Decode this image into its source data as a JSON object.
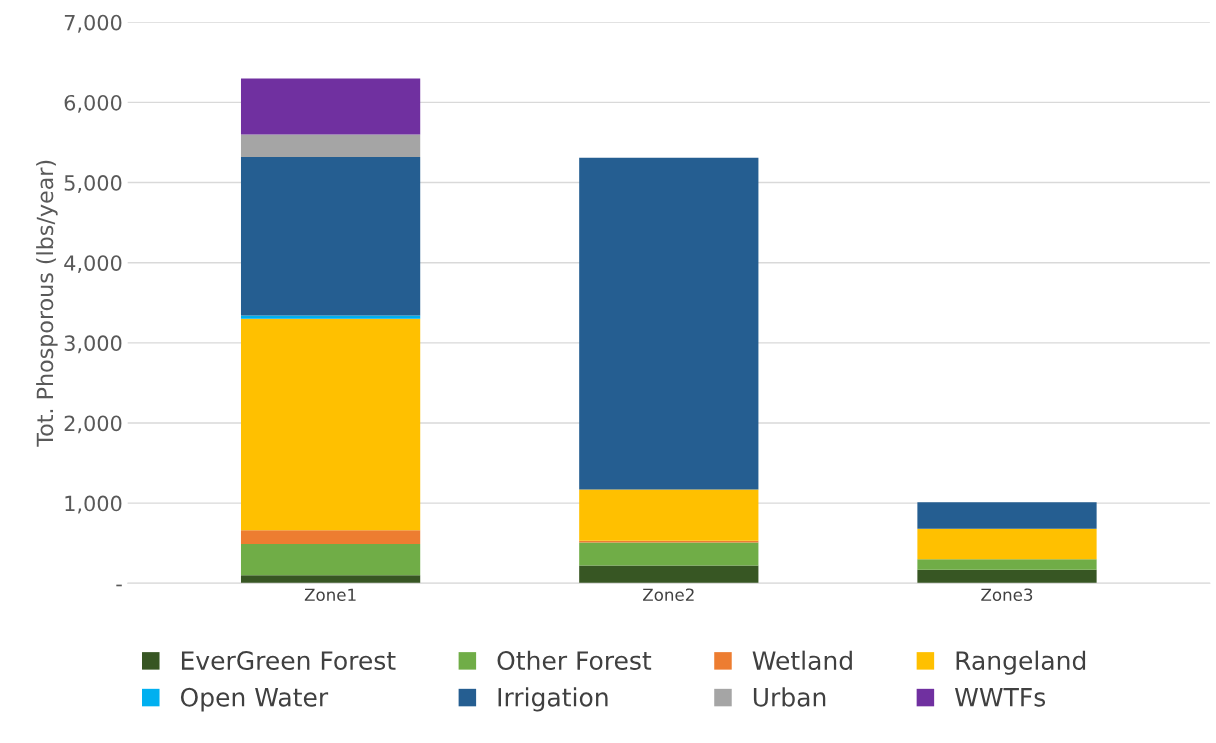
{
  "chart_data": {
    "type": "bar",
    "stacked": true,
    "ylabel": "Tot. Phosporous (lbs/year)",
    "categories": [
      "Zone1",
      "Zone2",
      "Zone3"
    ],
    "series": [
      {
        "name": "EverGreen Forest",
        "color": "#375623",
        "values": [
          100,
          220,
          170
        ]
      },
      {
        "name": "Other Forest",
        "color": "#70ad47",
        "values": [
          390,
          290,
          130
        ]
      },
      {
        "name": "Wetland",
        "color": "#ed7d31",
        "values": [
          170,
          20,
          0
        ]
      },
      {
        "name": "Rangeland",
        "color": "#ffc000",
        "values": [
          2640,
          640,
          380
        ]
      },
      {
        "name": "Open Water",
        "color": "#00b0f0",
        "values": [
          40,
          0,
          0
        ]
      },
      {
        "name": "Irrigation",
        "color": "#255e91",
        "values": [
          1980,
          4140,
          330
        ]
      },
      {
        "name": "Urban",
        "color": "#a5a5a5",
        "values": [
          280,
          0,
          0
        ]
      },
      {
        "name": "WWTFs",
        "color": "#7030a0",
        "values": [
          700,
          0,
          0
        ]
      }
    ],
    "ylim": [
      0,
      7000
    ],
    "yticks": [
      {
        "value": 0,
        "label": "-"
      },
      {
        "value": 1000,
        "label": "1,000"
      },
      {
        "value": 2000,
        "label": "2,000"
      },
      {
        "value": 3000,
        "label": "3,000"
      },
      {
        "value": 4000,
        "label": "4,000"
      },
      {
        "value": 5000,
        "label": "5,000"
      },
      {
        "value": 6000,
        "label": "6,000"
      },
      {
        "value": 7000,
        "label": "7,000"
      }
    ],
    "grid": "y",
    "legend": "bottom"
  }
}
